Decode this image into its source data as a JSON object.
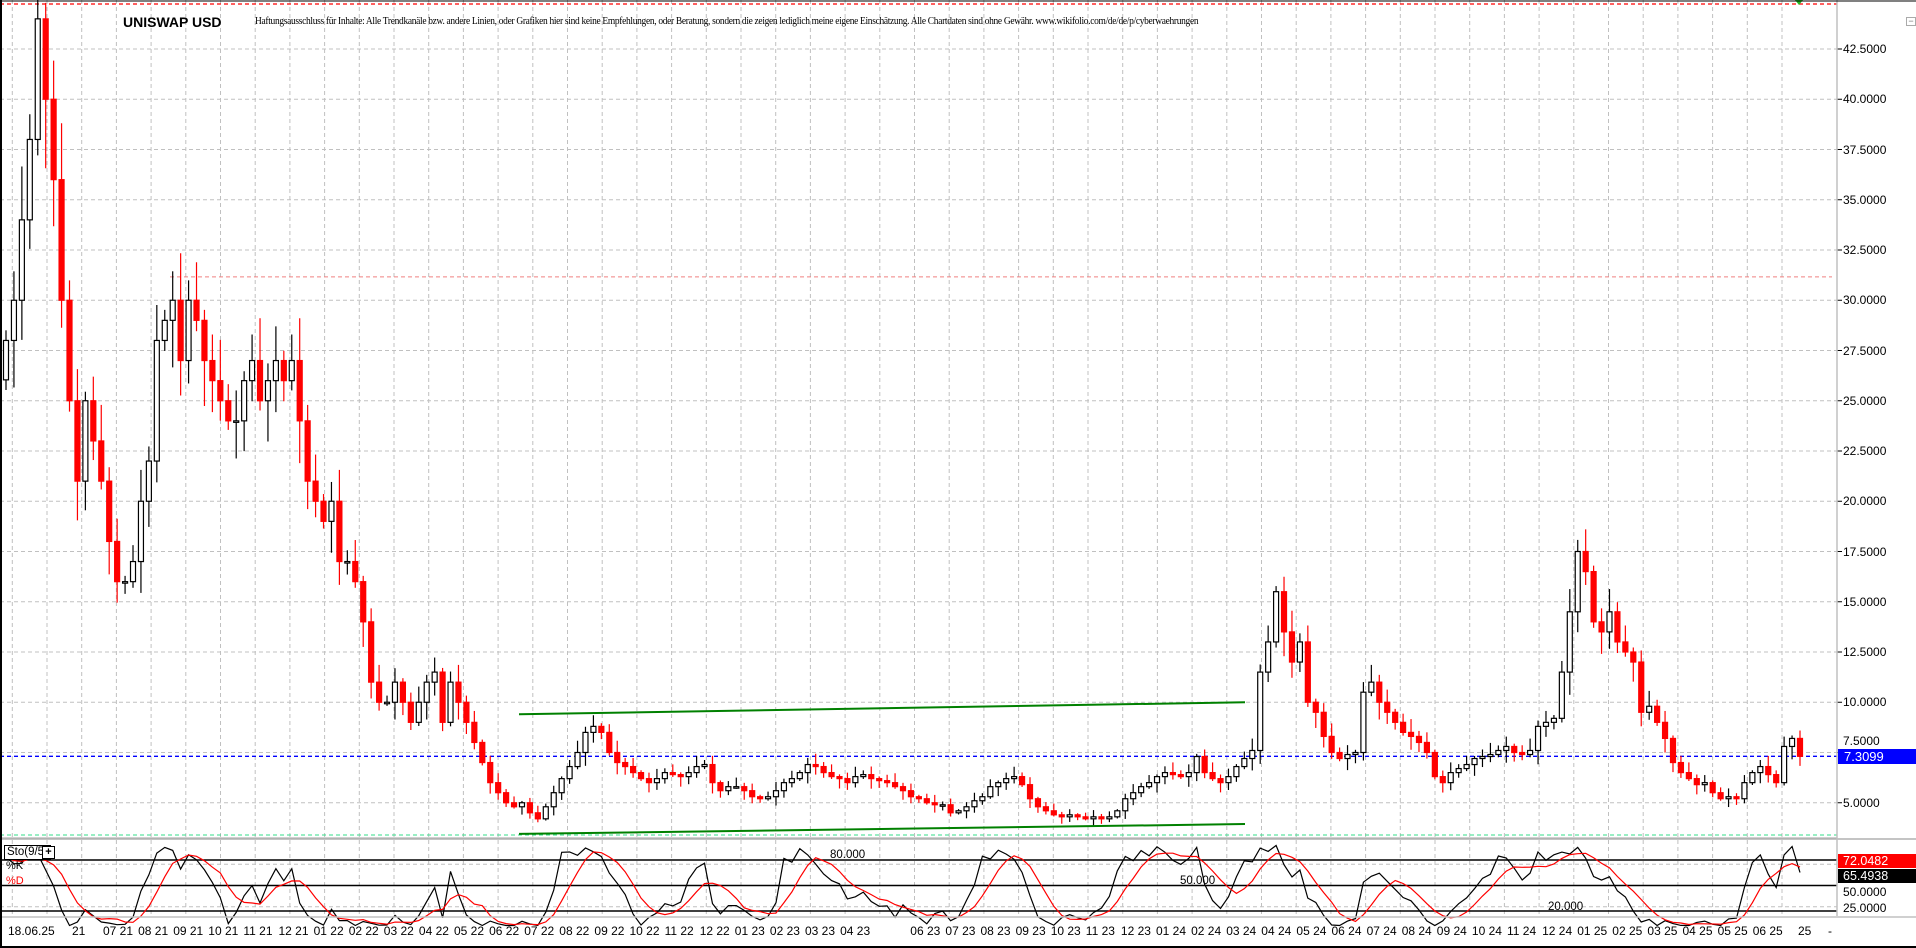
{
  "header": {
    "title": "UNISWAP USD",
    "disclaimer": "Haftungsausschluss für Inhalte: Alle Trendkanäle bzw. andere Linien, oder Grafiken hier sind keine Empfehlungen, oder Beratung, sondern die zeigen lediglich meine eigene Einschätzung. Alle Chartdaten sind ohne Gewähr.  www.wikifolio.com/de/de/p/cyberwaehrungen"
  },
  "indicator": {
    "name": "Sto(9/5)",
    "add_label": "+",
    "k_label": "%K",
    "d_label": "%D",
    "k_value": "72.0482",
    "d_value": "65.4938",
    "level_labels": [
      "80.000",
      "50.000",
      "20.000"
    ],
    "axis_labels": [
      "50.0000",
      "25.0000"
    ],
    "levels": [
      80,
      50,
      20
    ],
    "ylim": [
      0,
      100
    ]
  },
  "colors": {
    "up_candle": "#000000",
    "down_candle": "#ff0000",
    "last_price": "#0000ff",
    "trend_lines": "#008000",
    "k_line": "#000000",
    "d_line": "#ff0000"
  },
  "window": {
    "minimize_label": "−",
    "axis_end_label": "-"
  },
  "chart_data": {
    "type": "candlestick",
    "title": "UNISWAP USD",
    "interval": "weekly (approx.)",
    "ylim": [
      3.2,
      45
    ],
    "yticks": [
      5,
      7.5,
      10,
      12.5,
      15,
      17.5,
      20,
      22.5,
      25,
      27.5,
      30,
      32.5,
      35,
      37.5,
      40,
      42.5
    ],
    "ytick_labels": [
      "5.0000",
      "7.5000",
      "10.0000",
      "12.5000",
      "15.0000",
      "17.5000",
      "20.0000",
      "22.5000",
      "25.0000",
      "27.5000",
      "30.0000",
      "32.5000",
      "35.0000",
      "37.5000",
      "40.0000",
      "42.5000"
    ],
    "grid": true,
    "date_label": "18.06.25",
    "xtick_labels": [
      "21",
      "07 21",
      "08 21",
      "09 21",
      "10 21",
      "11 21",
      "12 21",
      "01 22",
      "02 22",
      "03 22",
      "04 22",
      "05 22",
      "06 22",
      "07 22",
      "08 22",
      "09 22",
      "10 22",
      "11 22",
      "12 22",
      "01 23",
      "02 23",
      "03 23",
      "04 23",
      "",
      "06 23",
      "07 23",
      "08 23",
      "09 23",
      "10 23",
      "11 23",
      "12 23",
      "01 24",
      "02 24",
      "03 24",
      "04 24",
      "05 24",
      "06 24",
      "07 24",
      "08 24",
      "09 24",
      "10 24",
      "11 24",
      "12 24",
      "01 25",
      "02 25",
      "03 25",
      "04 25",
      "05 25",
      "06 25",
      "25"
    ],
    "last_price": 7.3099,
    "last_price_label": "7.3099",
    "high_line": 44.74,
    "resistance_line": 31.16,
    "low_line": 3.41,
    "trend_lines": [
      {
        "from": [
          "06 22",
          9.4
        ],
        "to": [
          "03 24",
          10.0
        ]
      },
      {
        "from": [
          "06 22",
          3.45
        ],
        "to": [
          "03 24",
          3.94
        ]
      }
    ],
    "closes": [
      28,
      30,
      34,
      38,
      44,
      40,
      36,
      30,
      25,
      21,
      25,
      23,
      21,
      18,
      16,
      16,
      17,
      20,
      22,
      28,
      29,
      30,
      27,
      30,
      29,
      27,
      26,
      25,
      24,
      24,
      26,
      27,
      25,
      26,
      27,
      26,
      27,
      24,
      21,
      20,
      19,
      20,
      17,
      17,
      16,
      14,
      11,
      10,
      10,
      11,
      10,
      9,
      10,
      11,
      11.5,
      9,
      11,
      10,
      9,
      8,
      7,
      6,
      5.5,
      5,
      4.8,
      5,
      4.5,
      4.2,
      4.8,
      5.5,
      6.2,
      6.8,
      7.5,
      8.5,
      8.8,
      8.5,
      7.5,
      7.0,
      6.8,
      6.5,
      6.2,
      6.0,
      6.2,
      6.5,
      6.4,
      6.3,
      6.5,
      6.8,
      6.9,
      6.0,
      5.6,
      5.8,
      5.8,
      5.6,
      5.3,
      5.2,
      5.3,
      5.6,
      6.0,
      6.2,
      6.5,
      6.9,
      6.8,
      6.5,
      6.3,
      6.2,
      6.0,
      6.3,
      6.4,
      6.2,
      6.1,
      6.0,
      5.8,
      5.6,
      5.3,
      5.2,
      5.0,
      4.9,
      4.9,
      4.5,
      4.6,
      4.8,
      5.1,
      5.3,
      5.8,
      6.0,
      6.2,
      6.3,
      5.9,
      5.2,
      4.8,
      4.6,
      4.4,
      4.3,
      4.4,
      4.3,
      4.2,
      4.3,
      4.2,
      4.3,
      4.6,
      5.2,
      5.5,
      5.8,
      6.0,
      6.3,
      6.5,
      6.4,
      6.3,
      6.5,
      7.3,
      6.5,
      6.2,
      6.0,
      6.3,
      6.8,
      7.2,
      7.6,
      11.5,
      13,
      15.5,
      13.5,
      12,
      13,
      10,
      9.5,
      8.3,
      7.5,
      7.2,
      7.4,
      7.5,
      10.5,
      11,
      10,
      9.5,
      9,
      8.5,
      8.3,
      8.0,
      7.5,
      6.3,
      6.0,
      6.5,
      6.7,
      6.9,
      7.2,
      7.3,
      7.4,
      7.6,
      7.8,
      7.5,
      7.4,
      7.6,
      8.8,
      9.0,
      9.2,
      11.5,
      14.5,
      17.5,
      16.5,
      14,
      13.5,
      14.5,
      13,
      12.5,
      12,
      9.5,
      9.8,
      9.0,
      8.2,
      7.0,
      6.5,
      6.2,
      5.9,
      6.0,
      5.5,
      5.2,
      5.3,
      5.2,
      6.0,
      6.5,
      6.8,
      6.4,
      6.0,
      7.8,
      8.2,
      7.3099
    ]
  }
}
